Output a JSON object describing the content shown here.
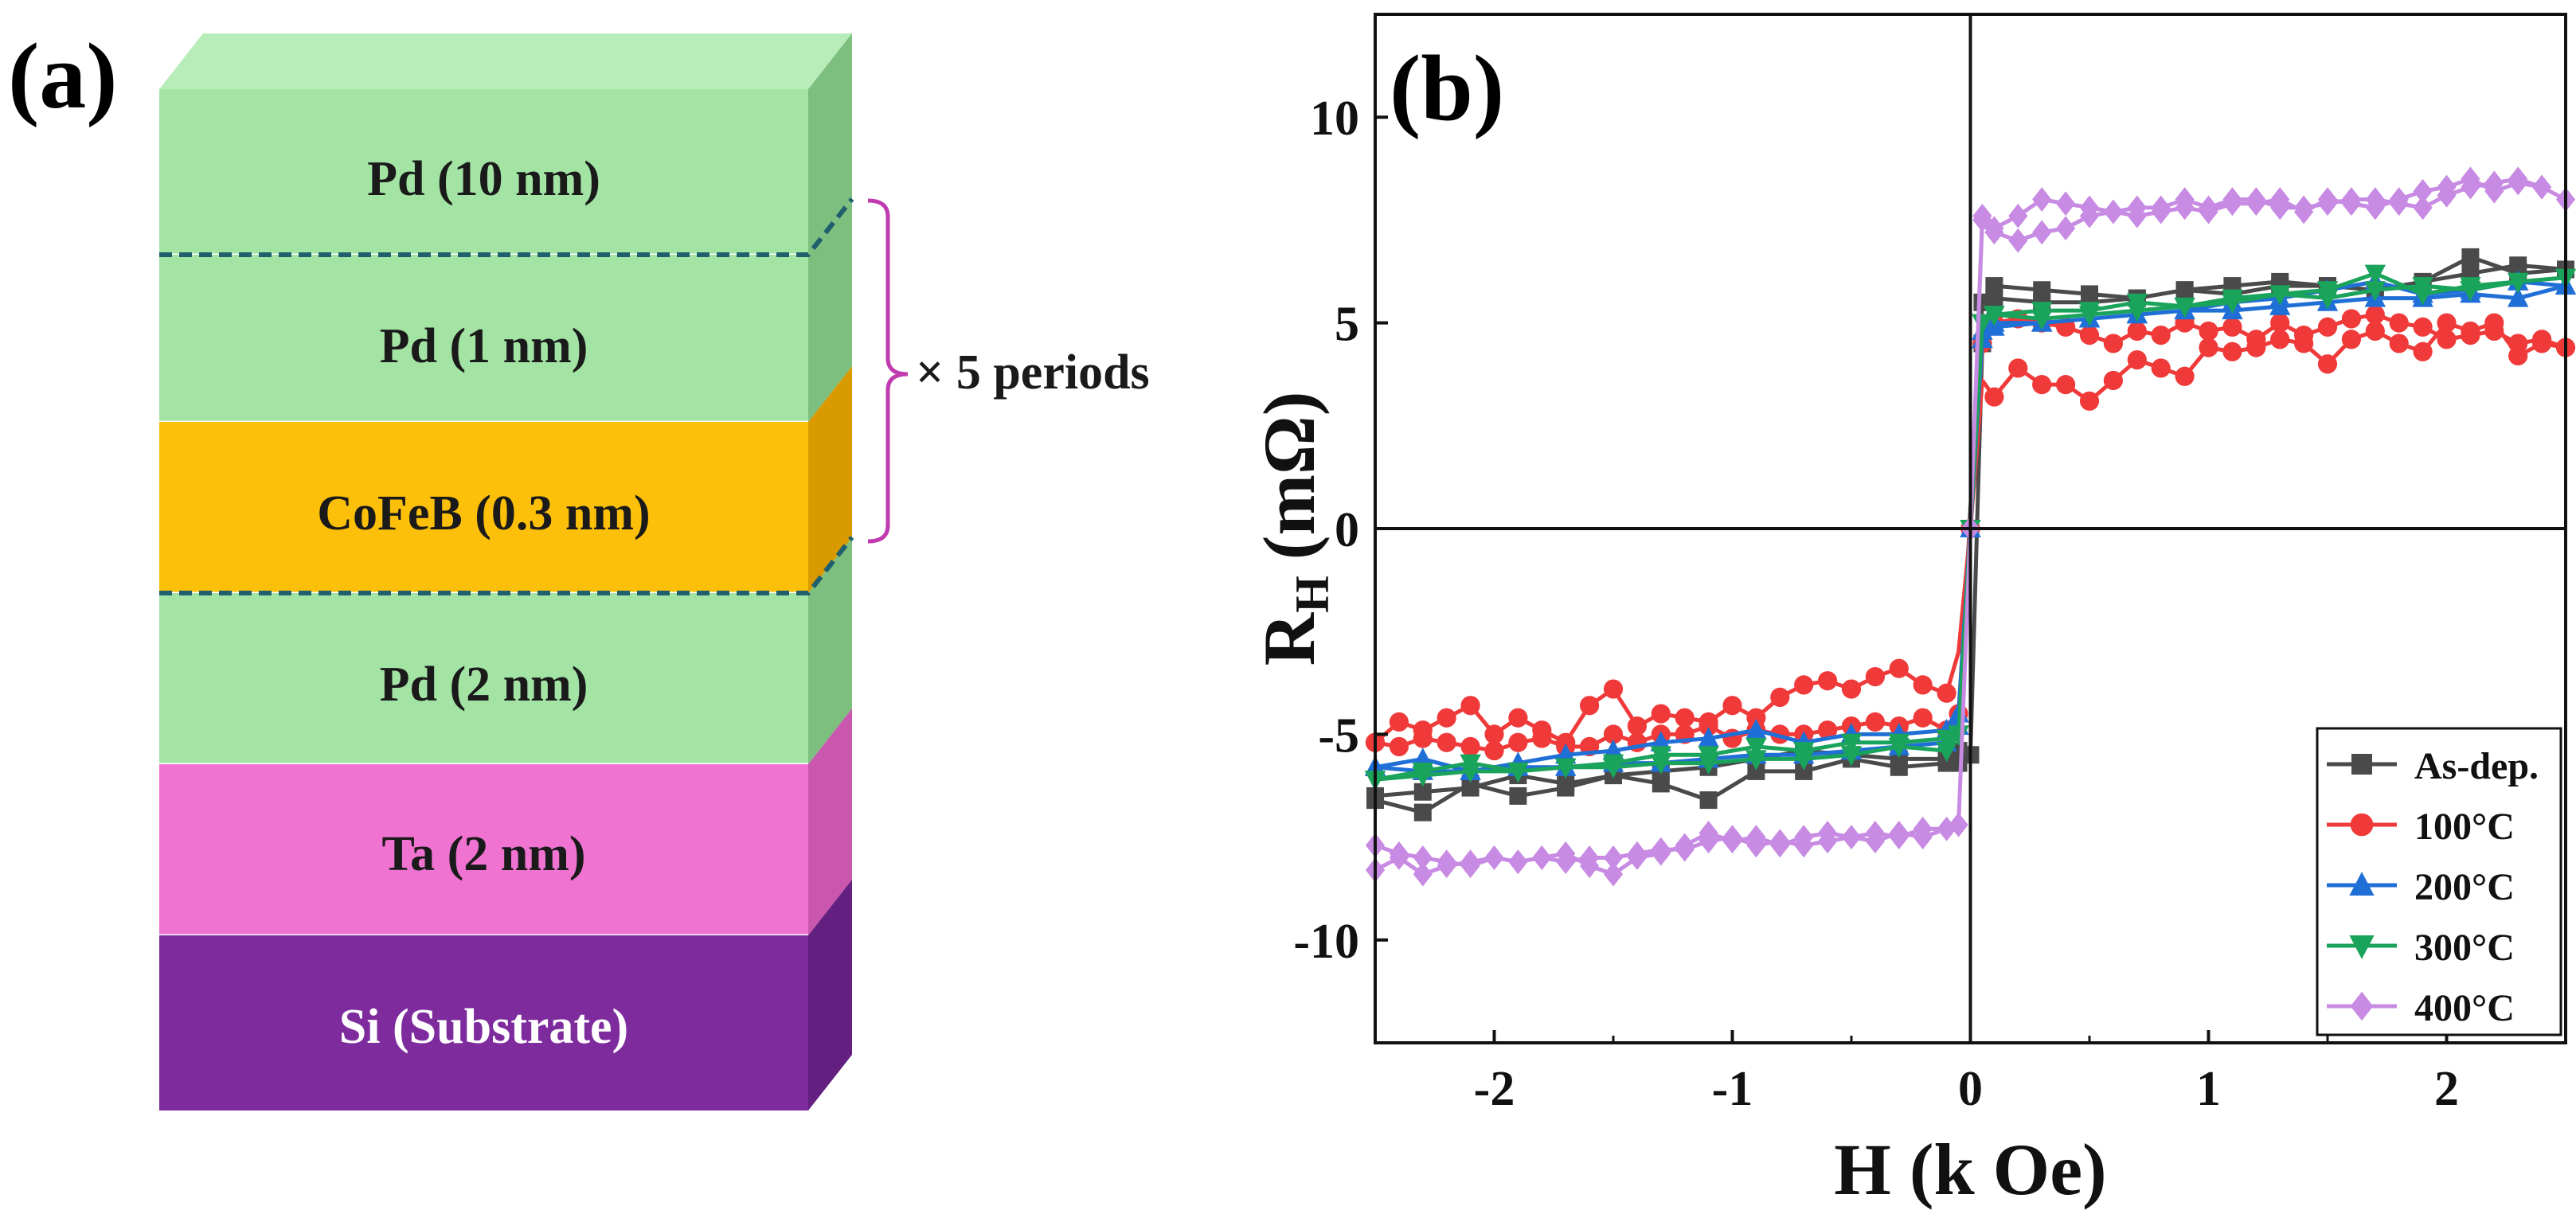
{
  "panel_a": {
    "label": "(a)",
    "layers": [
      {
        "name": "Pd (10 nm)",
        "front": "#a3e4a5",
        "side": "#7cbf7e"
      },
      {
        "name": "Pd (1 nm)",
        "front": "#a3e4a5",
        "side": "#7cbf7e"
      },
      {
        "name": "CoFeB (0.3 nm)",
        "front": "#fcbf0a",
        "side": "#d99a00"
      },
      {
        "name": "Pd (2 nm)",
        "front": "#a3e4a5",
        "side": "#7cbf7e"
      },
      {
        "name": "Ta (2 nm)",
        "front": "#f073d2",
        "side": "#c957ad"
      },
      {
        "name": "Si (Substrate)",
        "front": "#7e2b9e",
        "side": "#632080"
      }
    ],
    "top_face_color": "#b8ecb8",
    "period_label": "× 5 periods",
    "bracket_color": "#c03ab0",
    "dash_color": "#1f5f6e"
  },
  "panel_b": {
    "label": "(b)"
  },
  "chart_data": {
    "type": "line",
    "xlabel": "H (k Oe)",
    "ylabel_main": "R",
    "ylabel_sub": "H",
    "ylabel_unit": "(mΩ)",
    "xlim": [
      -2.5,
      2.5
    ],
    "ylim": [
      -12.5,
      12.5
    ],
    "xticks": [
      -2,
      -1,
      0,
      1,
      2
    ],
    "yticks": [
      -10,
      -5,
      0,
      5,
      10
    ],
    "grid": false,
    "zero_lines": true,
    "legend_position": "bottom-right",
    "series": [
      {
        "name": "As-dep.",
        "color": "#4a4a4a",
        "marker": "square",
        "x": [
          -2.5,
          -2.3,
          -2.1,
          -1.9,
          -1.7,
          -1.5,
          -1.3,
          -1.1,
          -0.9,
          -0.7,
          -0.5,
          -0.3,
          -0.1,
          -0.05,
          0.0,
          0.05,
          0.1,
          0.3,
          0.5,
          0.7,
          0.9,
          1.1,
          1.3,
          1.5,
          1.7,
          1.9,
          2.1,
          2.3,
          2.5,
          2.3,
          2.1,
          1.9,
          1.7,
          1.5,
          1.3,
          1.1,
          0.9,
          0.7,
          0.5,
          0.3,
          0.1,
          0.05,
          0.0,
          -0.05,
          -0.1,
          -0.3,
          -0.5,
          -0.7,
          -0.9,
          -1.1,
          -1.3,
          -1.5,
          -1.7,
          -1.9,
          -2.1,
          -2.3,
          -2.5
        ],
        "y": [
          -6.6,
          -6.9,
          -6.2,
          -6.5,
          -6.3,
          -6.0,
          -6.2,
          -6.6,
          -5.9,
          -5.9,
          -5.6,
          -5.8,
          -5.7,
          -5.7,
          -5.5,
          4.5,
          5.9,
          5.8,
          5.7,
          5.6,
          5.8,
          5.7,
          5.9,
          5.9,
          5.8,
          6.0,
          6.6,
          6.2,
          6.3,
          6.4,
          6.2,
          6.0,
          5.8,
          5.9,
          6.0,
          5.9,
          5.8,
          5.6,
          5.5,
          5.5,
          5.6,
          5.5,
          0.5,
          -5.4,
          -5.6,
          -5.6,
          -5.5,
          -5.4,
          -5.6,
          -5.8,
          -5.9,
          -6.0,
          -6.2,
          -6.0,
          -6.3,
          -6.4,
          -6.5
        ]
      },
      {
        "name": "100°C",
        "color": "#f03a3a",
        "marker": "circle",
        "x": [
          -2.5,
          -2.4,
          -2.3,
          -2.2,
          -2.1,
          -2.0,
          -1.9,
          -1.8,
          -1.7,
          -1.6,
          -1.5,
          -1.4,
          -1.3,
          -1.2,
          -1.1,
          -1.0,
          -0.9,
          -0.8,
          -0.7,
          -0.6,
          -0.5,
          -0.4,
          -0.3,
          -0.2,
          -0.1,
          -0.05,
          0.0,
          0.05,
          0.1,
          0.2,
          0.3,
          0.4,
          0.5,
          0.6,
          0.7,
          0.8,
          0.9,
          1.0,
          1.1,
          1.2,
          1.3,
          1.4,
          1.5,
          1.6,
          1.7,
          1.8,
          1.9,
          2.0,
          2.1,
          2.2,
          2.3,
          2.4,
          2.5,
          2.4,
          2.3,
          2.2,
          2.1,
          2.0,
          1.9,
          1.8,
          1.7,
          1.6,
          1.5,
          1.4,
          1.3,
          1.2,
          1.1,
          1.0,
          0.9,
          0.8,
          0.7,
          0.6,
          0.5,
          0.4,
          0.3,
          0.2,
          0.1,
          0.05,
          0.0,
          -0.05,
          -0.1,
          -0.2,
          -0.3,
          -0.4,
          -0.5,
          -0.6,
          -0.7,
          -0.8,
          -0.9,
          -1.0,
          -1.1,
          -1.2,
          -1.3,
          -1.4,
          -1.5,
          -1.6,
          -1.7,
          -1.8,
          -1.9,
          -2.0,
          -2.1,
          -2.2,
          -2.3,
          -2.4,
          -2.5
        ],
        "y": [
          -5.2,
          -4.7,
          -4.9,
          -4.6,
          -4.3,
          -5.0,
          -4.6,
          -4.9,
          -5.2,
          -4.3,
          -3.9,
          -4.8,
          -4.5,
          -4.6,
          -4.7,
          -4.3,
          -4.6,
          -4.1,
          -3.8,
          -3.7,
          -3.9,
          -3.6,
          -3.4,
          -3.8,
          -4.0,
          -3.0,
          0.0,
          3.6,
          3.2,
          3.9,
          3.5,
          3.5,
          3.1,
          3.6,
          4.1,
          3.9,
          3.7,
          4.4,
          4.3,
          4.4,
          4.6,
          4.5,
          4.0,
          4.6,
          4.8,
          4.5,
          4.3,
          5.0,
          4.8,
          5.0,
          4.2,
          4.5,
          4.4,
          4.6,
          4.5,
          4.8,
          4.7,
          4.6,
          4.9,
          5.0,
          5.2,
          5.1,
          4.9,
          4.7,
          5.0,
          4.6,
          4.9,
          4.8,
          5.0,
          4.7,
          4.8,
          4.5,
          4.7,
          4.9,
          5.0,
          5.1,
          5.0,
          4.5,
          0.0,
          -4.5,
          -4.9,
          -4.6,
          -4.8,
          -4.7,
          -4.8,
          -4.9,
          -5.0,
          -5.0,
          -4.9,
          -5.1,
          -4.8,
          -5.0,
          -5.0,
          -5.2,
          -5.0,
          -5.3,
          -5.3,
          -5.1,
          -5.2,
          -5.4,
          -5.3,
          -5.2,
          -5.1,
          -5.3,
          -5.2
        ]
      },
      {
        "name": "200°C",
        "color": "#1f6fd6",
        "marker": "triangle-up",
        "x": [
          -2.5,
          -2.3,
          -2.1,
          -1.9,
          -1.7,
          -1.5,
          -1.3,
          -1.1,
          -0.9,
          -0.7,
          -0.5,
          -0.3,
          -0.1,
          -0.05,
          0.0,
          0.05,
          0.1,
          0.3,
          0.5,
          0.7,
          0.9,
          1.1,
          1.3,
          1.5,
          1.7,
          1.9,
          2.1,
          2.3,
          2.5,
          2.3,
          2.1,
          1.9,
          1.7,
          1.5,
          1.3,
          1.1,
          0.9,
          0.7,
          0.5,
          0.3,
          0.1,
          0.05,
          0.0,
          -0.05,
          -0.1,
          -0.3,
          -0.5,
          -0.7,
          -0.9,
          -1.1,
          -1.3,
          -1.5,
          -1.7,
          -1.9,
          -2.1,
          -2.3,
          -2.5
        ],
        "y": [
          -5.8,
          -5.6,
          -5.9,
          -5.7,
          -5.5,
          -5.4,
          -5.2,
          -5.1,
          -4.9,
          -5.2,
          -5.0,
          -5.0,
          -4.9,
          -4.5,
          0.0,
          4.6,
          4.9,
          5.0,
          5.1,
          5.2,
          5.3,
          5.3,
          5.4,
          5.5,
          5.6,
          5.6,
          5.7,
          5.6,
          5.9,
          6.0,
          5.8,
          5.7,
          6.0,
          5.8,
          5.6,
          5.5,
          5.3,
          5.2,
          5.1,
          5.0,
          5.0,
          4.8,
          0.0,
          -4.8,
          -5.2,
          -5.3,
          -5.4,
          -5.5,
          -5.5,
          -5.6,
          -5.7,
          -5.7,
          -5.8,
          -5.8,
          -5.9,
          -5.9,
          -5.8
        ]
      },
      {
        "name": "300°C",
        "color": "#1aa35a",
        "marker": "triangle-down",
        "x": [
          -2.5,
          -2.3,
          -2.1,
          -1.9,
          -1.7,
          -1.5,
          -1.3,
          -1.1,
          -0.9,
          -0.7,
          -0.5,
          -0.3,
          -0.1,
          -0.05,
          0.0,
          0.05,
          0.1,
          0.3,
          0.5,
          0.7,
          0.9,
          1.1,
          1.3,
          1.5,
          1.7,
          1.9,
          2.1,
          2.3,
          2.5,
          2.3,
          2.1,
          1.9,
          1.7,
          1.5,
          1.3,
          1.1,
          0.9,
          0.7,
          0.5,
          0.3,
          0.1,
          0.05,
          0.0,
          -0.05,
          -0.1,
          -0.3,
          -0.5,
          -0.7,
          -0.9,
          -1.1,
          -1.3,
          -1.5,
          -1.7,
          -1.9,
          -2.1,
          -2.3,
          -2.5
        ],
        "y": [
          -6.1,
          -5.9,
          -5.7,
          -5.9,
          -5.8,
          -5.7,
          -5.5,
          -5.5,
          -5.3,
          -5.4,
          -5.2,
          -5.2,
          -5.1,
          -5.0,
          0.0,
          5.0,
          5.2,
          5.3,
          5.3,
          5.5,
          5.4,
          5.6,
          5.7,
          5.6,
          5.8,
          5.9,
          5.8,
          6.0,
          6.1,
          6.0,
          5.9,
          5.7,
          6.2,
          5.8,
          5.7,
          5.5,
          5.4,
          5.3,
          5.2,
          5.1,
          5.2,
          5.0,
          0.0,
          -5.0,
          -5.4,
          -5.3,
          -5.5,
          -5.6,
          -5.6,
          -5.7,
          -5.7,
          -5.8,
          -5.8,
          -5.9,
          -5.9,
          -6.0,
          -6.1
        ]
      },
      {
        "name": "400°C",
        "color": "#c88be3",
        "marker": "diamond",
        "x": [
          -2.5,
          -2.4,
          -2.3,
          -2.2,
          -2.1,
          -2.0,
          -1.9,
          -1.8,
          -1.7,
          -1.6,
          -1.5,
          -1.4,
          -1.3,
          -1.2,
          -1.1,
          -1.0,
          -0.9,
          -0.8,
          -0.7,
          -0.6,
          -0.5,
          -0.4,
          -0.3,
          -0.2,
          -0.1,
          -0.05,
          0.0,
          0.05,
          0.1,
          0.2,
          0.3,
          0.4,
          0.5,
          0.6,
          0.7,
          0.8,
          0.9,
          1.0,
          1.1,
          1.2,
          1.3,
          1.4,
          1.5,
          1.6,
          1.7,
          1.8,
          1.9,
          2.0,
          2.1,
          2.2,
          2.3,
          2.4,
          2.5,
          2.4,
          2.3,
          2.2,
          2.1,
          2.0,
          1.9,
          1.8,
          1.7,
          1.6,
          1.5,
          1.4,
          1.3,
          1.2,
          1.1,
          1.0,
          0.9,
          0.8,
          0.7,
          0.6,
          0.5,
          0.4,
          0.3,
          0.2,
          0.1,
          0.05,
          0.0,
          -0.05,
          -0.1,
          -0.2,
          -0.3,
          -0.4,
          -0.5,
          -0.6,
          -0.7,
          -0.8,
          -0.9,
          -1.0,
          -1.1,
          -1.2,
          -1.3,
          -1.4,
          -1.5,
          -1.6,
          -1.7,
          -1.8,
          -1.9,
          -2.0,
          -2.1,
          -2.2,
          -2.3,
          -2.4,
          -2.5
        ],
        "y": [
          -8.3,
          -8.0,
          -8.4,
          -8.2,
          -8.1,
          -8.0,
          -8.1,
          -8.0,
          -7.9,
          -8.2,
          -8.4,
          -8.0,
          -7.9,
          -7.7,
          -7.4,
          -7.6,
          -7.5,
          -7.7,
          -7.5,
          -7.4,
          -7.5,
          -7.4,
          -7.5,
          -7.3,
          -7.3,
          -7.2,
          0.0,
          7.6,
          7.2,
          7.0,
          7.2,
          7.3,
          7.6,
          7.7,
          7.6,
          7.7,
          7.8,
          7.7,
          7.9,
          7.9,
          8.0,
          7.7,
          8.0,
          7.9,
          7.8,
          8.0,
          8.2,
          8.3,
          8.5,
          8.2,
          8.4,
          8.3,
          8.0,
          8.3,
          8.5,
          8.4,
          8.3,
          8.1,
          7.8,
          7.9,
          8.0,
          8.0,
          7.9,
          7.8,
          7.8,
          8.0,
          8.0,
          7.8,
          8.0,
          7.8,
          7.8,
          7.7,
          7.8,
          7.9,
          8.0,
          7.6,
          7.3,
          7.5,
          0.0,
          -7.2,
          -7.3,
          -7.5,
          -7.4,
          -7.6,
          -7.5,
          -7.6,
          -7.7,
          -7.6,
          -7.7,
          -7.5,
          -7.6,
          -7.8,
          -7.8,
          -7.9,
          -8.0,
          -8.0,
          -8.1,
          -8.0,
          -8.1,
          -8.0,
          -8.2,
          -8.1,
          -8.0,
          -7.9,
          -7.7
        ]
      }
    ]
  }
}
